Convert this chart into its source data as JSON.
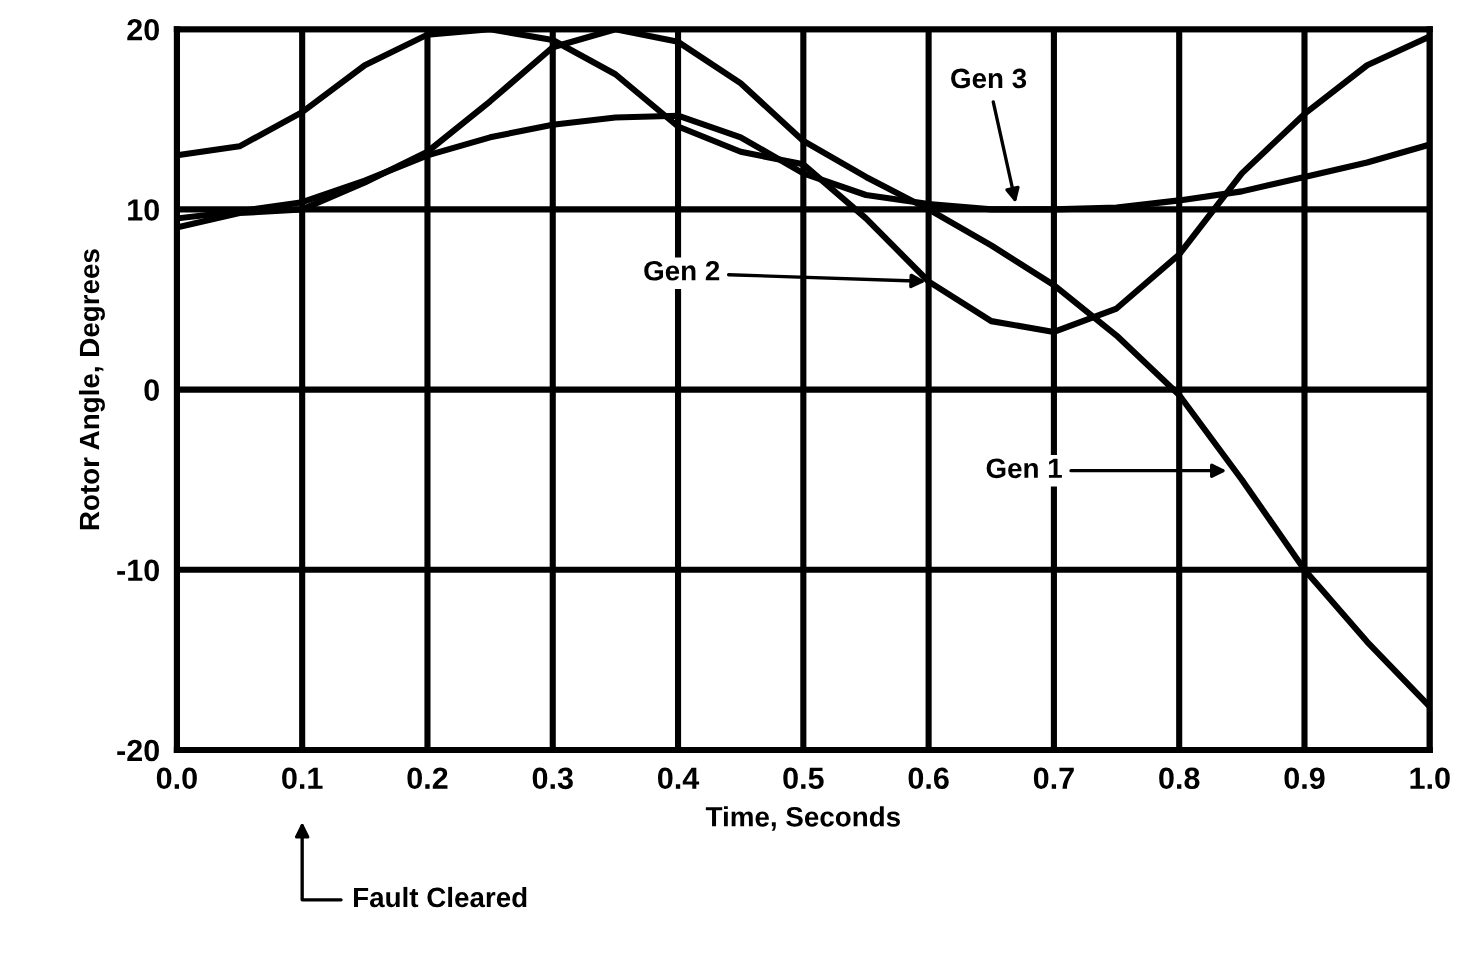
{
  "chart_data": {
    "type": "line",
    "xlabel": "Time, Seconds",
    "ylabel": "Rotor Angle, Degrees",
    "x": [
      0.0,
      0.05,
      0.1,
      0.15,
      0.2,
      0.25,
      0.3,
      0.35,
      0.4,
      0.45,
      0.5,
      0.55,
      0.6,
      0.65,
      0.7,
      0.75,
      0.8,
      0.85,
      0.9,
      0.95,
      1.0
    ],
    "series": [
      {
        "color": "#000000",
        "values": [
          9.0,
          9.8,
          10.0,
          11.5,
          13.2,
          16.0,
          19.0,
          20.0,
          19.3,
          17.0,
          13.8,
          11.8,
          10.0,
          8.0,
          5.8,
          3.0,
          -0.3,
          -5.0,
          -10.0,
          -14.0,
          -17.6
        ]
      },
      {
        "color": "#000000",
        "values": [
          13.0,
          13.5,
          15.4,
          18.0,
          19.7,
          20.0,
          19.4,
          17.5,
          14.6,
          13.2,
          12.5,
          9.5,
          6.0,
          3.8,
          3.2,
          4.5,
          7.5,
          12.0,
          15.3,
          18.0,
          19.6
        ]
      },
      {
        "color": "#000000",
        "values": [
          9.5,
          9.9,
          10.4,
          11.6,
          13.0,
          14.0,
          14.7,
          15.1,
          15.2,
          14.0,
          12.0,
          10.8,
          10.3,
          10.0,
          10.0,
          10.1,
          10.5,
          11.0,
          11.8,
          12.6,
          13.6
        ]
      }
    ],
    "annotations": [
      {
        "text": "Gen 1",
        "x": 0.84,
        "y": -4.5
      },
      {
        "text": "Gen 2",
        "x": 0.6,
        "y": 6
      },
      {
        "text": "Gen 3",
        "x": 0.67,
        "y": 10.2
      },
      "Fault Cleared"
    ],
    "xlim": [
      0.0,
      1.0
    ],
    "xticks": [
      {
        "value": 0.0,
        "label": "0.0"
      },
      0.1,
      0.2,
      0.3,
      0.4,
      0.5,
      0.6,
      0.7,
      0.8,
      0.9,
      {
        "value": 1.0,
        "label": "1.0"
      }
    ],
    "ylim": [
      -20,
      20
    ],
    "yticks": [
      -20,
      -10,
      0,
      10,
      20
    ],
    "grid": true,
    "line_style": "solid",
    "marker": "none"
  }
}
